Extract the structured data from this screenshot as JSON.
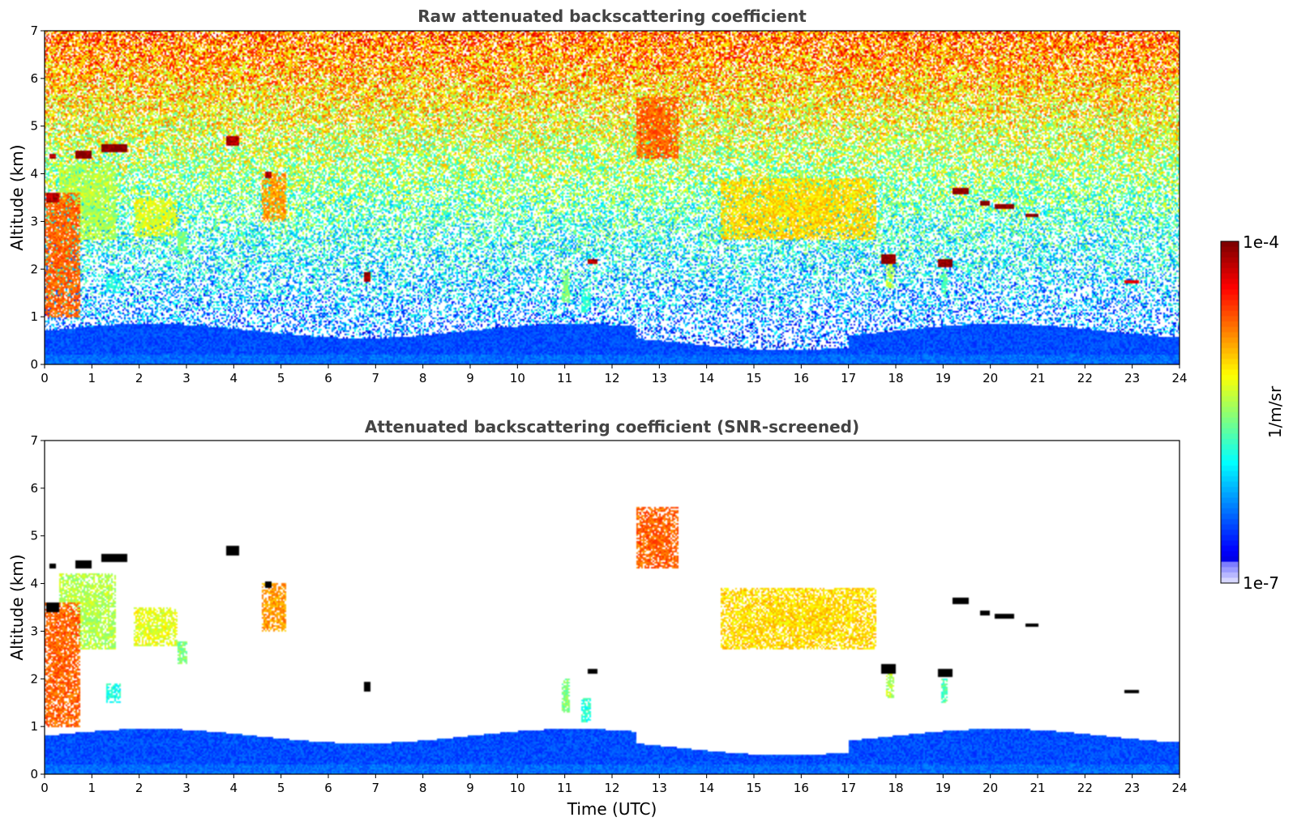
{
  "chart_data": [
    {
      "type": "heatmap",
      "title": "Raw attenuated backscattering coefficient",
      "xlabel": "",
      "ylabel": "Altitude (km)",
      "xlim": [
        0,
        24
      ],
      "ylim": [
        0,
        7
      ],
      "xticks": [
        "0",
        "1",
        "2",
        "3",
        "4",
        "5",
        "6",
        "7",
        "8",
        "9",
        "10",
        "11",
        "12",
        "13",
        "14",
        "15",
        "16",
        "17",
        "18",
        "19",
        "20",
        "21",
        "22",
        "23",
        "24"
      ],
      "yticks": [
        "0",
        "1",
        "2",
        "3",
        "4",
        "5",
        "6",
        "7"
      ],
      "grid": false,
      "noise_floor": true,
      "boundary_layer_top_km": 0.7,
      "features": [
        {
          "kind": "aerosol",
          "t0": 0.0,
          "t1": 0.75,
          "z0": 1.0,
          "z1": 3.6,
          "level": 0.78
        },
        {
          "kind": "aerosol",
          "t0": 0.3,
          "t1": 1.5,
          "z0": 2.6,
          "z1": 4.2,
          "level": 0.55
        },
        {
          "kind": "aerosol",
          "t0": 1.9,
          "t1": 2.8,
          "z0": 2.7,
          "z1": 3.5,
          "level": 0.6
        },
        {
          "kind": "aerosol",
          "t0": 1.3,
          "t1": 1.6,
          "z0": 1.5,
          "z1": 1.9,
          "level": 0.4
        },
        {
          "kind": "aerosol",
          "t0": 2.8,
          "t1": 3.0,
          "z0": 2.3,
          "z1": 2.8,
          "level": 0.5
        },
        {
          "kind": "aerosol",
          "t0": 4.6,
          "t1": 5.1,
          "z0": 3.0,
          "z1": 4.0,
          "level": 0.72
        },
        {
          "kind": "aerosol",
          "t0": 14.3,
          "t1": 17.6,
          "z0": 2.6,
          "z1": 3.9,
          "level": 0.66
        },
        {
          "kind": "aerosol",
          "t0": 12.5,
          "t1": 13.4,
          "z0": 4.3,
          "z1": 5.6,
          "level": 0.78
        },
        {
          "kind": "aerosol",
          "t0": 10.95,
          "t1": 11.1,
          "z0": 1.3,
          "z1": 2.0,
          "level": 0.5
        },
        {
          "kind": "aerosol",
          "t0": 11.35,
          "t1": 11.55,
          "z0": 1.1,
          "z1": 1.6,
          "level": 0.42
        },
        {
          "kind": "aerosol",
          "t0": 17.8,
          "t1": 17.95,
          "z0": 1.6,
          "z1": 2.1,
          "level": 0.55
        },
        {
          "kind": "aerosol",
          "t0": 18.95,
          "t1": 19.1,
          "z0": 1.5,
          "z1": 2.0,
          "level": 0.45
        },
        {
          "kind": "cloud",
          "t0": 0.65,
          "t1": 1.0,
          "z0": 4.3,
          "z1": 4.5,
          "level": 1.0
        },
        {
          "kind": "cloud",
          "t0": 1.2,
          "t1": 1.75,
          "z0": 4.45,
          "z1": 4.62,
          "level": 1.0
        },
        {
          "kind": "cloud",
          "t0": 0.05,
          "t1": 0.3,
          "z0": 3.4,
          "z1": 3.6,
          "level": 0.95
        },
        {
          "kind": "cloud",
          "t0": 0.1,
          "t1": 0.25,
          "z0": 4.3,
          "z1": 4.42,
          "level": 0.95
        },
        {
          "kind": "cloud",
          "t0": 3.85,
          "t1": 4.1,
          "z0": 4.6,
          "z1": 4.8,
          "level": 0.95
        },
        {
          "kind": "cloud",
          "t0": 6.75,
          "t1": 6.9,
          "z0": 1.75,
          "z1": 1.95,
          "level": 0.98
        },
        {
          "kind": "cloud",
          "t0": 4.65,
          "t1": 4.8,
          "z0": 3.9,
          "z1": 4.05,
          "level": 0.95
        },
        {
          "kind": "cloud",
          "t0": 17.7,
          "t1": 18.0,
          "z0": 2.1,
          "z1": 2.3,
          "level": 1.0
        },
        {
          "kind": "cloud",
          "t0": 18.9,
          "t1": 19.2,
          "z0": 2.05,
          "z1": 2.2,
          "level": 1.0
        },
        {
          "kind": "cloud",
          "t0": 19.2,
          "t1": 19.55,
          "z0": 3.57,
          "z1": 3.7,
          "level": 1.0
        },
        {
          "kind": "cloud",
          "t0": 19.8,
          "t1": 20.0,
          "z0": 3.32,
          "z1": 3.42,
          "level": 1.0
        },
        {
          "kind": "cloud",
          "t0": 20.1,
          "t1": 20.5,
          "z0": 3.25,
          "z1": 3.37,
          "level": 1.0
        },
        {
          "kind": "cloud",
          "t0": 20.75,
          "t1": 21.0,
          "z0": 3.09,
          "z1": 3.17,
          "level": 1.0
        },
        {
          "kind": "cloud",
          "t0": 11.5,
          "t1": 11.7,
          "z0": 2.1,
          "z1": 2.2,
          "level": 0.95
        },
        {
          "kind": "cloud",
          "t0": 22.85,
          "t1": 23.15,
          "z0": 1.7,
          "z1": 1.78,
          "level": 0.9
        }
      ]
    },
    {
      "type": "heatmap",
      "title": "Attenuated backscattering coefficient (SNR-screened)",
      "xlabel": "Time (UTC)",
      "ylabel": "Altitude (km)",
      "xlim": [
        0,
        24
      ],
      "ylim": [
        0,
        7
      ],
      "xticks": [
        "0",
        "1",
        "2",
        "3",
        "4",
        "5",
        "6",
        "7",
        "8",
        "9",
        "10",
        "11",
        "12",
        "13",
        "14",
        "15",
        "16",
        "17",
        "18",
        "19",
        "20",
        "21",
        "22",
        "23",
        "24"
      ],
      "yticks": [
        "0",
        "1",
        "2",
        "3",
        "4",
        "5",
        "6",
        "7"
      ],
      "grid": false,
      "noise_floor": false,
      "boundary_layer_top_km": 0.8,
      "features": "same as raw panel, screened"
    }
  ],
  "colorbar": {
    "label": "1/m/sr",
    "max_label": "1e-4",
    "min_label": "1e-7",
    "colormap": "jet",
    "scale": "log"
  },
  "colors": {
    "jet_low": "#00007f",
    "jet_blue": "#0000ff",
    "jet_cyan": "#00ffff",
    "jet_yellow": "#ffff00",
    "jet_red": "#ff0000",
    "jet_high": "#7f0000",
    "cloud_screened": "#000000"
  }
}
